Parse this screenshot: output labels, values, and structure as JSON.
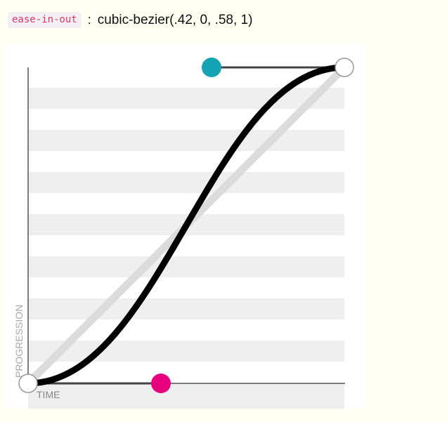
{
  "header": {
    "keyword": "ease-in-out",
    "separator": ":",
    "value": "cubic-bezier(.42, 0, .58, 1)"
  },
  "diagram": {
    "y_axis_label": "PROGRESSION",
    "x_axis_label": "TIME",
    "control_points": {
      "p1": {
        "x": 0.42,
        "y": 0,
        "color": "#e6007e"
      },
      "p2": {
        "x": 0.58,
        "y": 1,
        "color": "#14a3b2"
      }
    },
    "curve_color": "#000000",
    "reference_line_color": "#dcdcdc",
    "stripe_color": "#efefef"
  }
}
